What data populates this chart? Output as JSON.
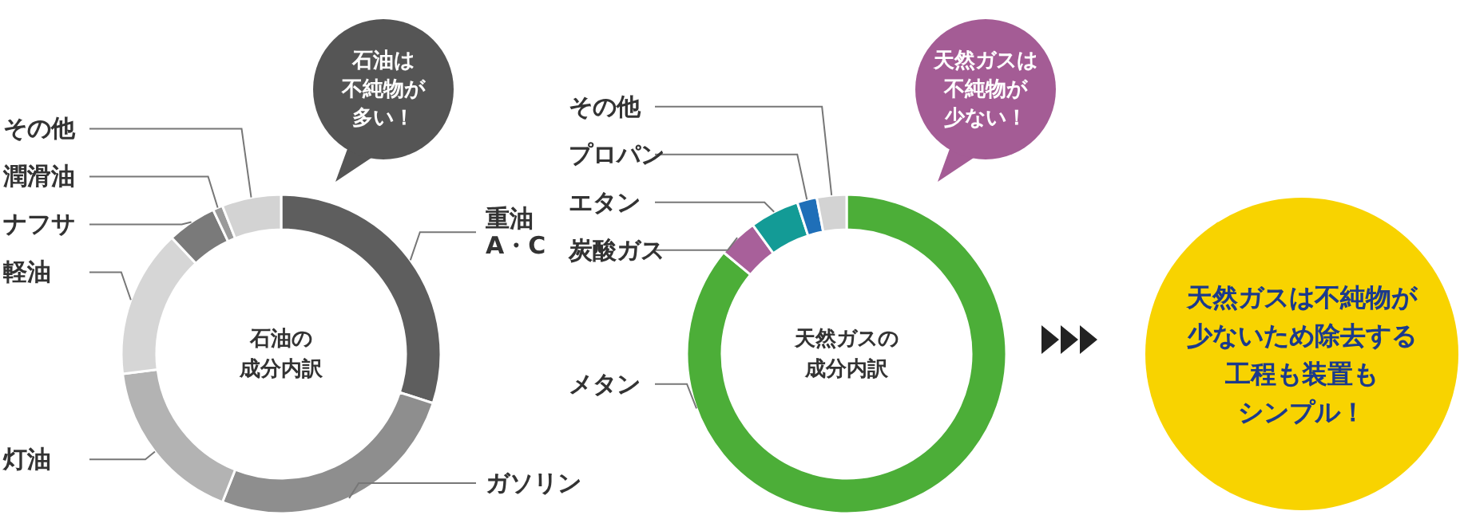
{
  "chart_data": [
    {
      "type": "donut",
      "title": "石油の成分内訳",
      "categories": [
        "重油A・C",
        "ガソリン",
        "灯油",
        "軽油",
        "ナフサ",
        "潤滑油",
        "その他"
      ],
      "values": [
        30,
        26,
        17,
        15,
        5,
        1,
        6
      ],
      "colors": [
        "#5e5e5e",
        "#8e8e8e",
        "#b3b3b3",
        "#d6d6d6",
        "#7a7a7a",
        "#9a9a9a",
        "#d3d3d3"
      ],
      "annotations": [
        "石油は不純物が多い！"
      ]
    },
    {
      "type": "donut",
      "title": "天然ガスの成分内訳",
      "categories": [
        "メタン",
        "炭酸ガス",
        "エタン",
        "プロパン",
        "その他"
      ],
      "values": [
        86,
        4,
        5,
        2,
        3
      ],
      "colors": [
        "#4cae38",
        "#a8609a",
        "#139b96",
        "#1f6fb8",
        "#d3d3d3"
      ],
      "annotations": [
        "天然ガスは不純物が少ない！"
      ]
    },
    {
      "type": "other",
      "title": "天然ガスは不純物が少ないため除去する工程も装置もシンプル！"
    }
  ]
}
